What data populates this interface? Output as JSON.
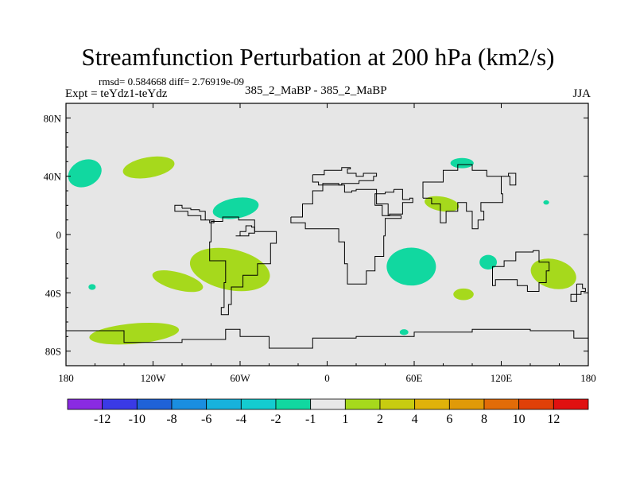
{
  "chart_data": {
    "type": "heatmap",
    "title": "Streamfunction Perturbation at 200 hPa (km2/s)",
    "subtitle_stats": "rmsd= 0.584668 diff= 2.76919e-09",
    "left_label": "Expt = teYdz1-teYdz",
    "center_label": "385_2_MaBP - 385_2_MaBP",
    "right_label": "JJA",
    "xlim": [
      -180,
      180
    ],
    "ylim": [
      -90,
      90
    ],
    "x_ticks": [
      {
        "value": -180,
        "label": "180"
      },
      {
        "value": -120,
        "label": "120W"
      },
      {
        "value": -60,
        "label": "60W"
      },
      {
        "value": 0,
        "label": "0"
      },
      {
        "value": 60,
        "label": "60E"
      },
      {
        "value": 120,
        "label": "120E"
      },
      {
        "value": 180,
        "label": "180"
      }
    ],
    "y_ticks": [
      {
        "value": 80,
        "label": "80N"
      },
      {
        "value": 40,
        "label": "40N"
      },
      {
        "value": 0,
        "label": "0"
      },
      {
        "value": -40,
        "label": "40S"
      },
      {
        "value": -80,
        "label": "80S"
      }
    ],
    "background_color": "#e6e6e6",
    "colorbar": {
      "colors": [
        "#8a2be2",
        "#3a3ae6",
        "#1f62d8",
        "#1a8ee0",
        "#17b2dc",
        "#14ccd0",
        "#11d8a0",
        "#e8e8e8",
        "#a6d91c",
        "#c8cc10",
        "#e0b20a",
        "#e09a08",
        "#e26c08",
        "#e04008",
        "#e01010"
      ],
      "labels": [
        "-12",
        "-10",
        "-8",
        "-6",
        "-4",
        "-2",
        "-1",
        "1",
        "2",
        "4",
        "6",
        "8",
        "10",
        "12"
      ]
    },
    "anomalies": [
      {
        "lon": -167,
        "lat": 42,
        "rlon": 12,
        "rlat": 9,
        "rot": -25,
        "level": "-1",
        "color": "#11d8a0"
      },
      {
        "lon": -123,
        "lat": 46,
        "rlon": 18,
        "rlat": 7,
        "rot": -10,
        "level": "1",
        "color": "#a6d91c"
      },
      {
        "lon": -63,
        "lat": 18,
        "rlon": 16,
        "rlat": 7,
        "rot": -10,
        "level": "-1",
        "color": "#11d8a0"
      },
      {
        "lon": -67,
        "lat": -24,
        "rlon": 28,
        "rlat": 14,
        "rot": 12,
        "level": "1",
        "color": "#a6d91c"
      },
      {
        "lon": -103,
        "lat": -32,
        "rlon": 18,
        "rlat": 6,
        "rot": 15,
        "level": "1",
        "color": "#a6d91c"
      },
      {
        "lon": -162,
        "lat": -36,
        "rlon": 2.5,
        "rlat": 2,
        "rot": 0,
        "level": "-1",
        "color": "#11d8a0"
      },
      {
        "lon": -133,
        "lat": -68,
        "rlon": 31,
        "rlat": 7,
        "rot": -5,
        "level": "1",
        "color": "#a6d91c"
      },
      {
        "lon": 58,
        "lat": -22,
        "rlon": 17,
        "rlat": 13,
        "rot": 0,
        "level": "-1",
        "color": "#11d8a0"
      },
      {
        "lon": 93,
        "lat": 49,
        "rlon": 8,
        "rlat": 3.5,
        "rot": 0,
        "level": "-1",
        "color": "#11d8a0"
      },
      {
        "lon": 79,
        "lat": 21,
        "rlon": 12,
        "rlat": 5,
        "rot": 10,
        "level": "1",
        "color": "#a6d91c"
      },
      {
        "lon": 111,
        "lat": -19,
        "rlon": 6,
        "rlat": 5,
        "rot": 0,
        "level": "-1",
        "color": "#11d8a0"
      },
      {
        "lon": 94,
        "lat": -41,
        "rlon": 7,
        "rlat": 4,
        "rot": 0,
        "level": "1",
        "color": "#a6d91c"
      },
      {
        "lon": 156,
        "lat": -27,
        "rlon": 16,
        "rlat": 10,
        "rot": 15,
        "level": "1",
        "color": "#a6d91c"
      },
      {
        "lon": 151,
        "lat": 22,
        "rlon": 2,
        "rlat": 1.5,
        "rot": 0,
        "level": "-1",
        "color": "#11d8a0"
      },
      {
        "lon": 53,
        "lat": -67,
        "rlon": 3,
        "rlat": 2,
        "rot": 0,
        "level": "-1",
        "color": "#11d8a0"
      }
    ],
    "coastlines": [
      [
        [
          -10,
          41
        ],
        [
          -2,
          44
        ],
        [
          8,
          44
        ],
        [
          10,
          46
        ],
        [
          16,
          45
        ],
        [
          14,
          42
        ],
        [
          20,
          40
        ],
        [
          25,
          42
        ],
        [
          34,
          40
        ],
        [
          32,
          37
        ],
        [
          22,
          35
        ],
        [
          10,
          34
        ],
        [
          -6,
          36
        ],
        [
          -10,
          41
        ]
      ],
      [
        [
          -25,
          12
        ],
        [
          -17,
          21
        ],
        [
          -10,
          30
        ],
        [
          -3,
          35
        ],
        [
          8,
          34
        ],
        [
          12,
          29
        ],
        [
          17,
          30
        ],
        [
          20,
          31
        ],
        [
          32,
          31
        ],
        [
          34,
          21
        ],
        [
          42,
          13
        ],
        [
          51,
          11
        ],
        [
          40,
          -1
        ],
        [
          39,
          -15
        ],
        [
          33,
          -25
        ],
        [
          27,
          -34
        ],
        [
          18,
          -34
        ],
        [
          14,
          -20
        ],
        [
          12,
          -5
        ],
        [
          8,
          4
        ],
        [
          -4,
          4
        ],
        [
          -15,
          8
        ],
        [
          -25,
          12
        ]
      ],
      [
        [
          -80,
          9
        ],
        [
          -72,
          12
        ],
        [
          -61,
          10
        ],
        [
          -50,
          2
        ],
        [
          -35,
          -6
        ],
        [
          -39,
          -20
        ],
        [
          -48,
          -28
        ],
        [
          -58,
          -36
        ],
        [
          -66,
          -48
        ],
        [
          -68,
          -55
        ],
        [
          -73,
          -50
        ],
        [
          -71,
          -33
        ],
        [
          -70,
          -18
        ],
        [
          -81,
          -5
        ],
        [
          -80,
          9
        ]
      ],
      [
        [
          -100,
          18
        ],
        [
          -94,
          17
        ],
        [
          -88,
          16
        ],
        [
          -84,
          10
        ],
        [
          -78,
          8
        ],
        [
          -81,
          10
        ],
        [
          -87,
          13
        ],
        [
          -96,
          16
        ],
        [
          -105,
          20
        ],
        [
          -100,
          18
        ]
      ],
      [
        [
          46,
          31
        ],
        [
          52,
          24
        ],
        [
          57,
          25
        ],
        [
          59,
          22
        ],
        [
          52,
          14
        ],
        [
          43,
          13
        ],
        [
          38,
          20
        ],
        [
          33,
          28
        ],
        [
          40,
          29
        ],
        [
          46,
          31
        ]
      ],
      [
        [
          66,
          25
        ],
        [
          72,
          21
        ],
        [
          78,
          8
        ],
        [
          82,
          16
        ],
        [
          90,
          22
        ],
        [
          96,
          16
        ],
        [
          100,
          4
        ],
        [
          104,
          10
        ],
        [
          108,
          16
        ],
        [
          106,
          22
        ],
        [
          121,
          28
        ],
        [
          120,
          40
        ],
        [
          126,
          34
        ],
        [
          130,
          42
        ],
        [
          125,
          40
        ],
        [
          110,
          44
        ],
        [
          100,
          48
        ],
        [
          90,
          44
        ],
        [
          80,
          36
        ],
        [
          66,
          25
        ]
      ],
      [
        [
          114,
          -22
        ],
        [
          122,
          -18
        ],
        [
          130,
          -12
        ],
        [
          137,
          -12
        ],
        [
          142,
          -11
        ],
        [
          146,
          -19
        ],
        [
          153,
          -25
        ],
        [
          151,
          -33
        ],
        [
          146,
          -39
        ],
        [
          138,
          -35
        ],
        [
          131,
          -31
        ],
        [
          116,
          -35
        ],
        [
          114,
          -22
        ]
      ],
      [
        [
          -180,
          -66
        ],
        [
          -140,
          -74
        ],
        [
          -100,
          -72
        ],
        [
          -70,
          -65
        ],
        [
          -60,
          -70
        ],
        [
          -40,
          -78
        ],
        [
          -10,
          -71
        ],
        [
          20,
          -70
        ],
        [
          60,
          -67
        ],
        [
          100,
          -65
        ],
        [
          140,
          -66
        ],
        [
          170,
          -71
        ],
        [
          180,
          -73
        ],
        [
          180,
          -90
        ],
        [
          -180,
          -90
        ],
        [
          -180,
          -66
        ]
      ],
      [
        [
          172,
          -34
        ],
        [
          176,
          -37
        ],
        [
          178,
          -39
        ],
        [
          175,
          -41
        ],
        [
          168,
          -46
        ],
        [
          172,
          -34
        ]
      ],
      [
        [
          -63,
          -1
        ],
        [
          -60,
          2
        ],
        [
          -56,
          6
        ],
        [
          -52,
          5
        ],
        [
          -50,
          1
        ],
        [
          -54,
          -1
        ],
        [
          -63,
          -1
        ]
      ]
    ]
  }
}
